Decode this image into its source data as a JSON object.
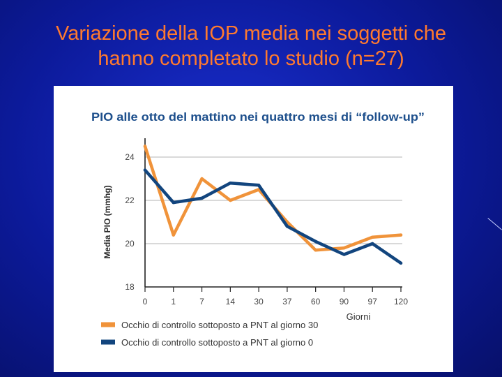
{
  "slide": {
    "title_line1": "Variazione della IOP media nei soggetti che",
    "title_line2": "hanno completato lo studio (n=27)"
  },
  "colors": {
    "title": "#ff7a2e",
    "background": "#0c1a9a",
    "series_orange": "#f0933a",
    "series_blue": "#12457e",
    "chart_title": "#1d4f8c"
  },
  "chart_data": {
    "type": "line",
    "title": "PIO alle otto del mattino nei quattro mesi di “follow-up”",
    "xlabel": "Giorni",
    "ylabel": "Media PIO (mmhg)",
    "categories": [
      "0",
      "1",
      "7",
      "14",
      "30",
      "37",
      "60",
      "90",
      "97",
      "120"
    ],
    "yticks": [
      "18",
      "20",
      "22",
      "24"
    ],
    "ylim": [
      18,
      25
    ],
    "grid": true,
    "legend_placement": "bottom-left",
    "series": [
      {
        "name": "Occhio di controllo sottoposto a PNT al giorno 30",
        "values": [
          24.5,
          20.4,
          23.0,
          22.0,
          22.5,
          21.0,
          19.7,
          19.8,
          20.3,
          20.4
        ]
      },
      {
        "name": "Occhio di controllo sottoposto a PNT al giorno 0",
        "values": [
          23.4,
          21.9,
          22.1,
          22.8,
          22.7,
          20.8,
          20.1,
          19.5,
          20.0,
          19.1
        ]
      }
    ]
  }
}
